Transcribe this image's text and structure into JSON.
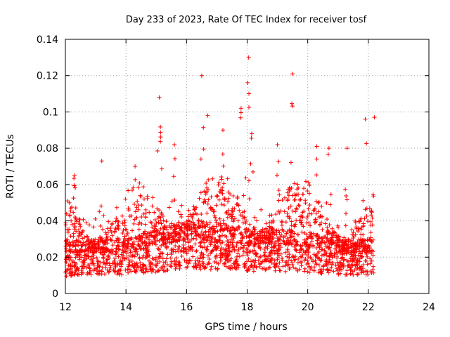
{
  "chart_data": {
    "type": "scatter",
    "title": "Day 233 of 2023, Rate Of TEC Index for receiver tosf",
    "xlabel": "GPS time / hours",
    "ylabel": "ROTI / TECUs",
    "xlim": [
      12,
      24
    ],
    "ylim": [
      0,
      0.14
    ],
    "x_ticks": [
      12,
      14,
      16,
      18,
      20,
      22,
      24
    ],
    "y_ticks": [
      0,
      0.02,
      0.04,
      0.06,
      0.08,
      0.1,
      0.12,
      0.14
    ],
    "y_tick_labels": [
      "0",
      "0.02",
      "0.04",
      "0.06",
      "0.08",
      "0.1",
      "0.12",
      "0.14"
    ],
    "grid": true,
    "marker": "+",
    "color": "#ff0000",
    "series": [
      {
        "name": "ROTI",
        "x_range": [
          12.0,
          22.2
        ],
        "sample_count": 2600,
        "baseline_profile": [
          {
            "x": 12.0,
            "y": 0.021
          },
          {
            "x": 13.0,
            "y": 0.022
          },
          {
            "x": 14.0,
            "y": 0.023
          },
          {
            "x": 15.0,
            "y": 0.026
          },
          {
            "x": 16.0,
            "y": 0.03
          },
          {
            "x": 17.0,
            "y": 0.029
          },
          {
            "x": 18.0,
            "y": 0.027
          },
          {
            "x": 19.0,
            "y": 0.027
          },
          {
            "x": 20.0,
            "y": 0.025
          },
          {
            "x": 21.0,
            "y": 0.023
          },
          {
            "x": 22.2,
            "y": 0.022
          }
        ],
        "spikes": [
          {
            "x": 12.3,
            "y": 0.065
          },
          {
            "x": 13.2,
            "y": 0.073
          },
          {
            "x": 14.3,
            "y": 0.07
          },
          {
            "x": 15.1,
            "y": 0.108
          },
          {
            "x": 15.6,
            "y": 0.082
          },
          {
            "x": 16.5,
            "y": 0.12
          },
          {
            "x": 16.7,
            "y": 0.098
          },
          {
            "x": 17.2,
            "y": 0.09
          },
          {
            "x": 17.8,
            "y": 0.102
          },
          {
            "x": 18.05,
            "y": 0.13
          },
          {
            "x": 18.15,
            "y": 0.088
          },
          {
            "x": 19.0,
            "y": 0.082
          },
          {
            "x": 19.5,
            "y": 0.121
          },
          {
            "x": 20.3,
            "y": 0.081
          },
          {
            "x": 20.7,
            "y": 0.08
          },
          {
            "x": 21.3,
            "y": 0.08
          },
          {
            "x": 21.9,
            "y": 0.096
          },
          {
            "x": 22.2,
            "y": 0.097
          }
        ]
      }
    ]
  }
}
